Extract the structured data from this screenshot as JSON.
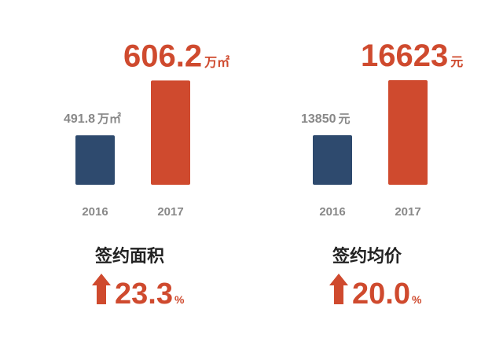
{
  "chart_data": [
    {
      "type": "bar",
      "title": "签约面积",
      "categories": [
        "2016",
        "2017"
      ],
      "values": [
        491.8,
        606.2
      ],
      "unit": "万㎡",
      "colors": [
        "#2e4a6e",
        "#cf4a2e"
      ],
      "ylim": [
        384,
        610
      ],
      "change": 23.3,
      "change_unit": "%"
    },
    {
      "type": "bar",
      "title": "签约均价",
      "categories": [
        "2016",
        "2017"
      ],
      "values": [
        13850,
        16623
      ],
      "unit": "元",
      "colors": [
        "#2e4a6e",
        "#cf4a2e"
      ],
      "ylim": [
        11235,
        16700
      ],
      "change": 20.0,
      "change_unit": "%"
    }
  ]
}
